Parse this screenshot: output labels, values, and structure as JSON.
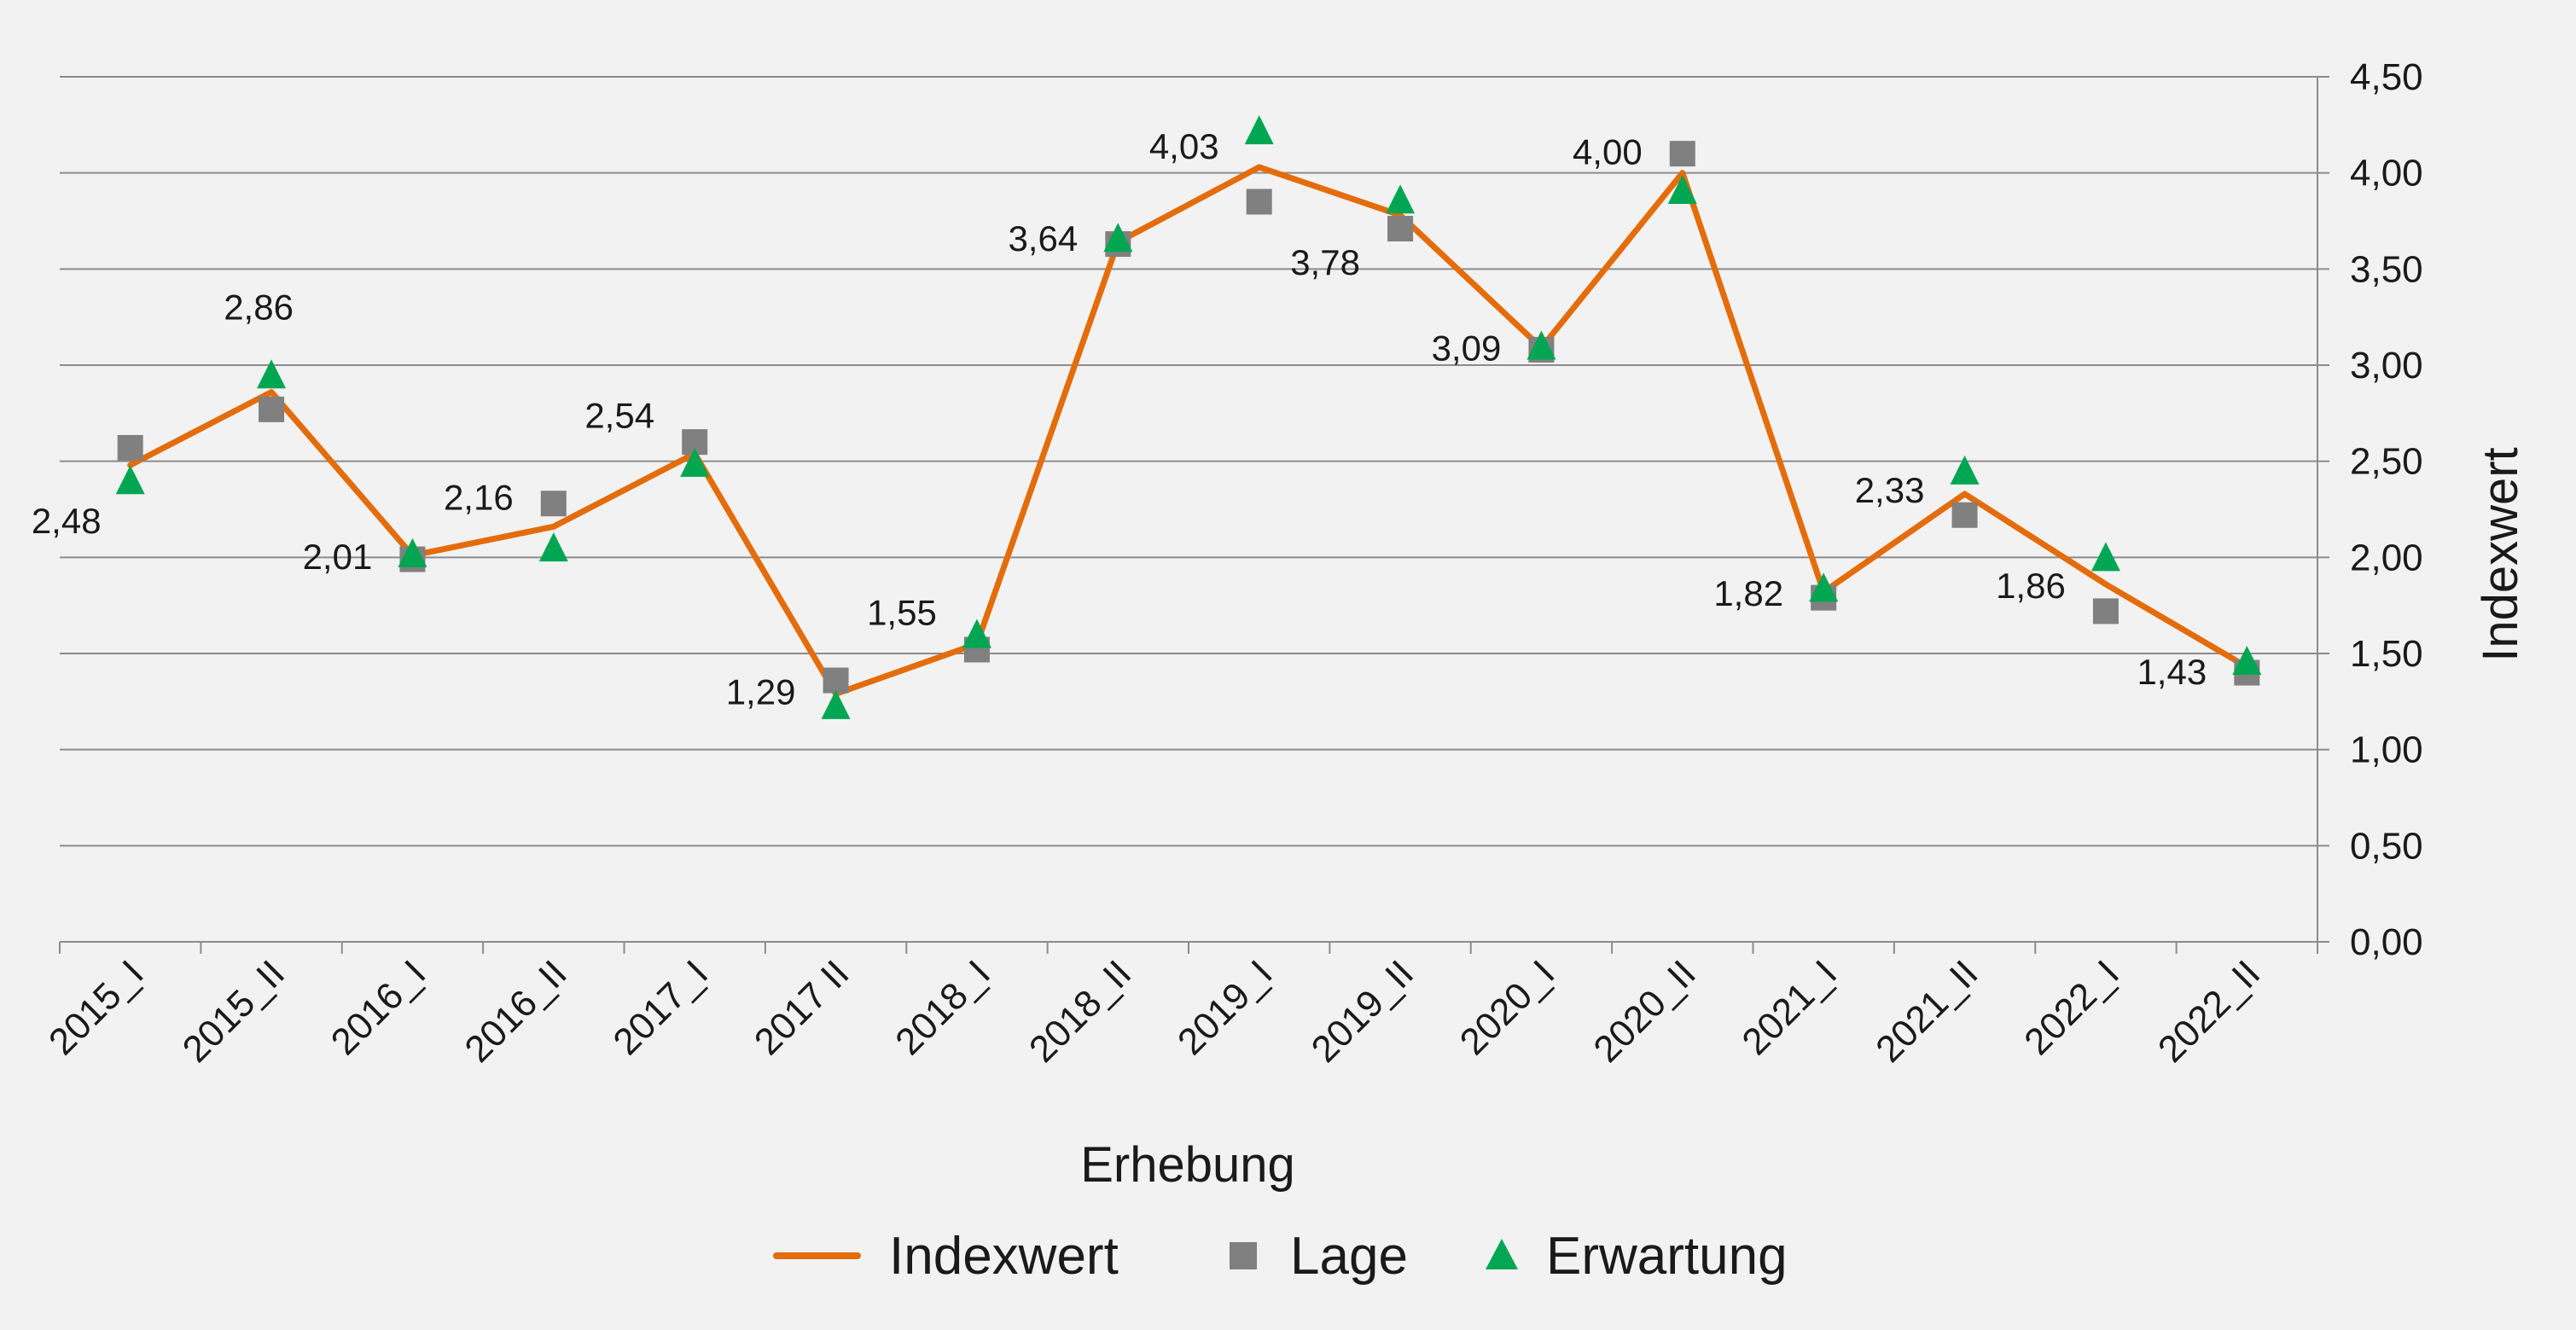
{
  "chart_data": {
    "type": "line",
    "categories": [
      "2015_I",
      "2015_II",
      "2016_I",
      "2016_II",
      "2017_I",
      "2017 II",
      "2018_I",
      "2018_II",
      "2019_I",
      "2019_II",
      "2020_I",
      "2020_II",
      "2021_I",
      "2021_II",
      "2022_I",
      "2022_II"
    ],
    "series": [
      {
        "name": "Indexwert",
        "style": "line",
        "color": "#e46c0a",
        "values": [
          2.48,
          2.86,
          2.01,
          2.16,
          2.54,
          1.29,
          1.55,
          3.64,
          4.03,
          3.78,
          3.09,
          4.0,
          1.82,
          2.33,
          1.86,
          1.43
        ],
        "labels": [
          "2,48",
          "2,86",
          "2,01",
          "2,16",
          "2,54",
          "1,29",
          "1,55",
          "3,64",
          "4,03",
          "3,78",
          "3,09",
          "4,00",
          "1,82",
          "2,33",
          "1,86",
          "1,43"
        ]
      },
      {
        "name": "Lage",
        "style": "square-marker",
        "color": "#808080",
        "values": [
          2.57,
          2.77,
          1.99,
          2.28,
          2.6,
          1.36,
          1.52,
          3.63,
          3.85,
          3.71,
          3.08,
          4.1,
          1.79,
          2.22,
          1.72,
          1.4
        ]
      },
      {
        "name": "Erwartung",
        "style": "triangle-marker",
        "color": "#00a651",
        "values": [
          2.4,
          2.95,
          2.02,
          2.05,
          2.49,
          1.23,
          1.6,
          3.66,
          4.22,
          3.86,
          3.1,
          3.91,
          1.84,
          2.45,
          2.0,
          1.46
        ]
      }
    ],
    "xlabel": "Erhebung",
    "ylabel": "Indexwert",
    "ylim": [
      0,
      4.5
    ],
    "yticks": [
      "0,00",
      "0,50",
      "1,00",
      "1,50",
      "2,00",
      "2,50",
      "3,00",
      "3,50",
      "4,00",
      "4,50"
    ],
    "y_axis_side": "right",
    "grid": true,
    "legend_position": "bottom"
  }
}
